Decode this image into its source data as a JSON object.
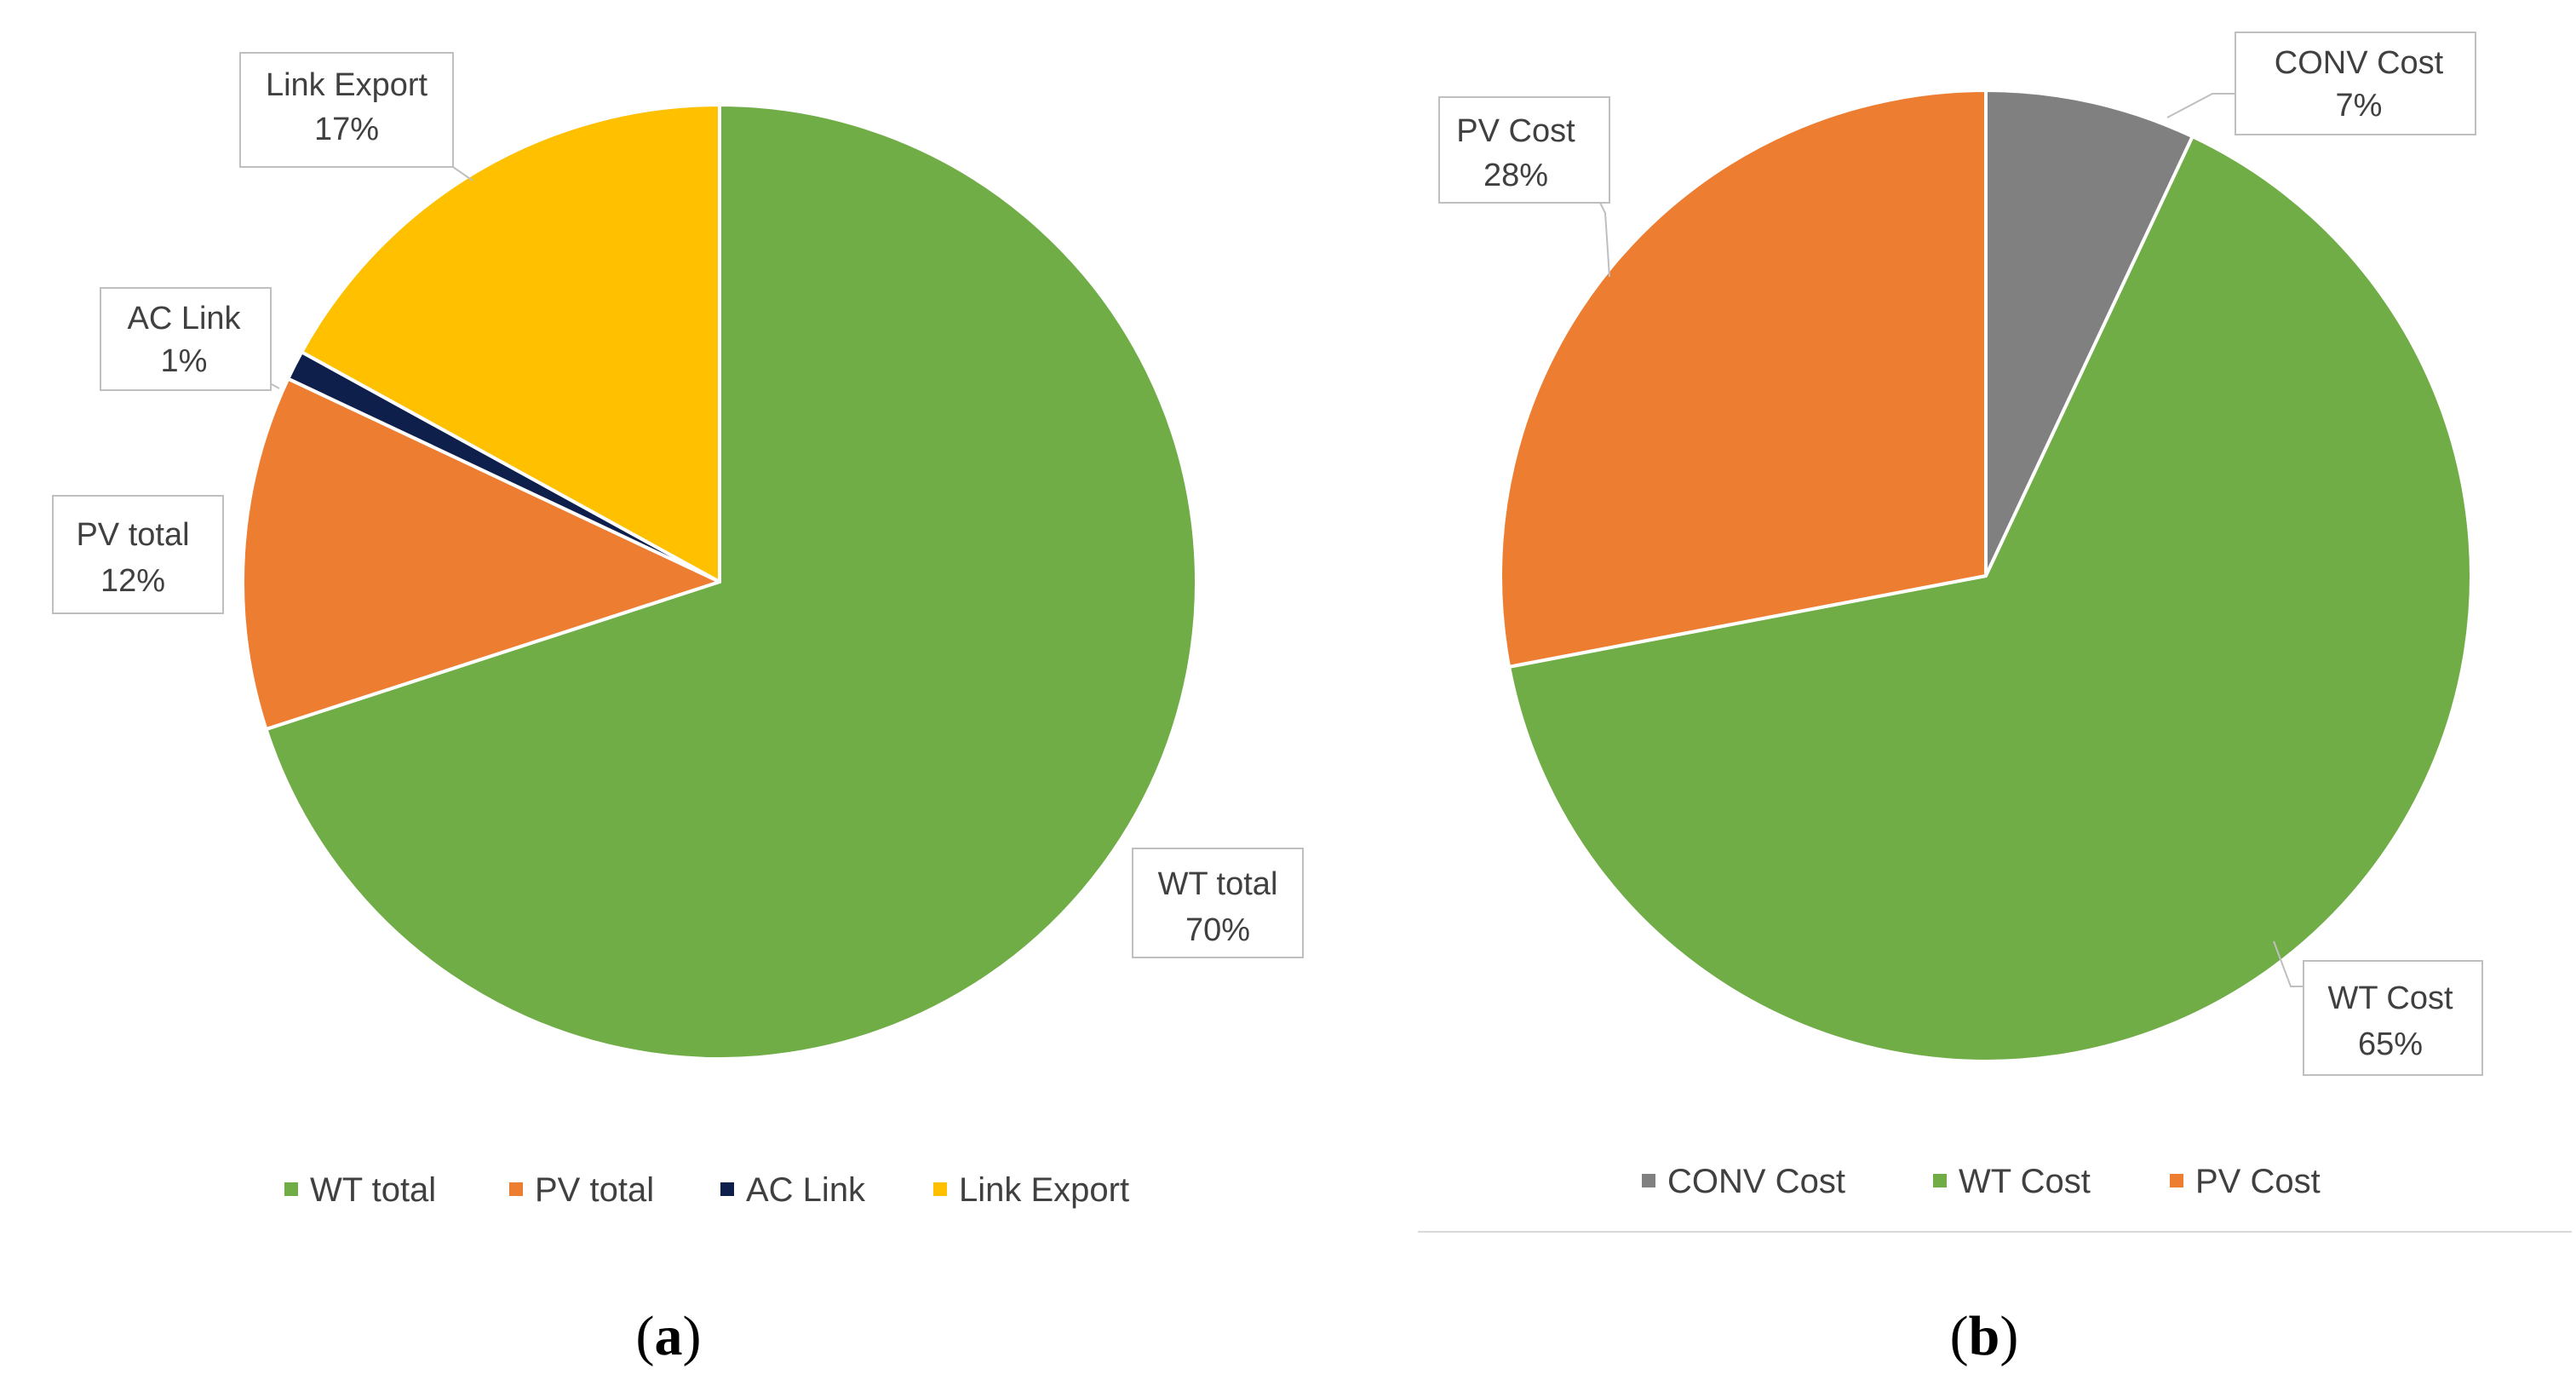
{
  "colors": {
    "green": "#70ad47",
    "orange": "#ed7d31",
    "navy": "#0d1f4a",
    "gold": "#ffc000",
    "gray": "#808080",
    "text": "#404040",
    "callout_border": "#bfbfbf"
  },
  "chart_data": [
    {
      "type": "pie",
      "caption": {
        "open": "(",
        "letter": "a",
        "close": ")"
      },
      "start_angle_deg": 0,
      "direction": "clockwise",
      "slices": [
        {
          "id": "wt",
          "name": "WT total",
          "value": 70,
          "label": "70%",
          "color": "#70ad47"
        },
        {
          "id": "pv",
          "name": "PV total",
          "value": 12,
          "label": "12%",
          "color": "#ed7d31"
        },
        {
          "id": "ac",
          "name": "AC Link",
          "value": 1,
          "label": "1%",
          "color": "#0d1f4a"
        },
        {
          "id": "link",
          "name": "Link Export",
          "value": 17,
          "label": "17%",
          "color": "#ffc000"
        }
      ],
      "legend": [
        "WT total",
        "PV total",
        "AC Link",
        "Link Export"
      ],
      "legend_position": "bottom"
    },
    {
      "type": "pie",
      "caption": {
        "open": "(",
        "letter": "b",
        "close": ")"
      },
      "start_angle_deg": 0,
      "direction": "clockwise",
      "slices": [
        {
          "id": "conv",
          "name": "CONV Cost",
          "value": 7,
          "label": "7%",
          "color": "#808080"
        },
        {
          "id": "wt",
          "name": "WT Cost",
          "value": 65,
          "label": "65%",
          "color": "#70ad47"
        },
        {
          "id": "pv",
          "name": "PV Cost",
          "value": 28,
          "label": "28%",
          "color": "#ed7d31"
        }
      ],
      "legend": [
        "CONV Cost",
        "WT Cost",
        "PV Cost"
      ],
      "legend_position": "bottom"
    }
  ]
}
